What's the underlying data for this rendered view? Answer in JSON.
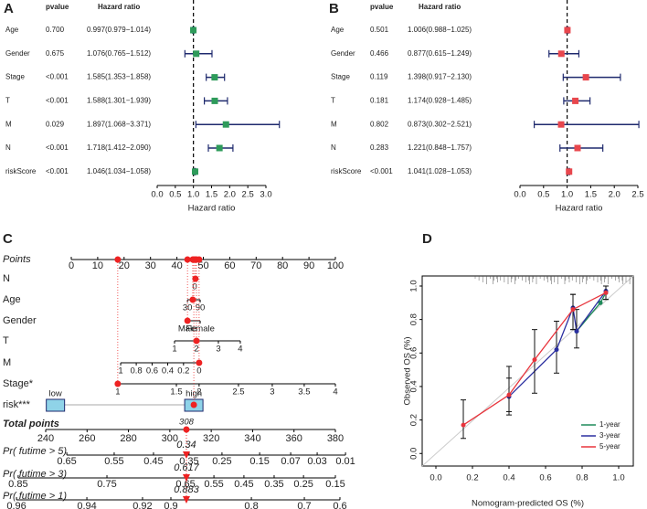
{
  "chart_data": [
    {
      "type": "forest",
      "panel": "A",
      "pvalue_header": "pvalue",
      "hr_header": "Hazard ratio",
      "xlabel": "Hazard ratio",
      "categories": [
        "Age",
        "Gender",
        "Stage",
        "T",
        "M",
        "N",
        "riskScore"
      ],
      "pvalues": [
        "0.700",
        "0.675",
        "<0.001",
        "<0.001",
        "0.029",
        "<0.001",
        "<0.001"
      ],
      "hr_labels": [
        "0.997(0.979−1.014)",
        "1.076(0.765−1.512)",
        "1.585(1.353−1.858)",
        "1.588(1.301−1.939)",
        "1.897(1.068−3.371)",
        "1.718(1.412−2.090)",
        "1.046(1.034−1.058)"
      ],
      "values": [
        0.997,
        1.076,
        1.585,
        1.588,
        1.897,
        1.718,
        1.046
      ],
      "lower": [
        0.979,
        0.765,
        1.353,
        1.301,
        1.068,
        1.412,
        1.034
      ],
      "upper": [
        1.014,
        1.512,
        1.858,
        1.939,
        3.371,
        2.09,
        1.058
      ],
      "color": "#2e9b5a",
      "ci_color": "#1f2a6e",
      "reference_line": 1,
      "xlim": [
        0,
        3
      ],
      "xticks": [
        {
          "value": 0,
          "label": "0.0"
        },
        0.5,
        {
          "value": 1,
          "label": "1.0"
        },
        1.5,
        {
          "value": 2,
          "label": "2.0"
        },
        2.5,
        {
          "value": 3,
          "label": "3.0"
        }
      ]
    },
    {
      "type": "forest",
      "panel": "B",
      "pvalue_header": "pvalue",
      "hr_header": "Hazard ratio",
      "xlabel": "Hazard ratio",
      "categories": [
        "Age",
        "Gender",
        "Stage",
        "T",
        "M",
        "N",
        "riskScore"
      ],
      "pvalues": [
        "0.501",
        "0.466",
        "0.119",
        "0.181",
        "0.802",
        "0.283",
        "<0.001"
      ],
      "hr_labels": [
        "1.006(0.988−1.025)",
        "0.877(0.615−1.249)",
        "1.398(0.917−2.130)",
        "1.174(0.928−1.485)",
        "0.873(0.302−2.521)",
        "1.221(0.848−1.757)",
        "1.041(1.028−1.053)"
      ],
      "values": [
        1.006,
        0.877,
        1.398,
        1.174,
        0.873,
        1.221,
        1.041
      ],
      "lower": [
        0.988,
        0.615,
        0.917,
        0.928,
        0.302,
        0.848,
        1.028
      ],
      "upper": [
        1.025,
        1.249,
        2.13,
        1.485,
        2.521,
        1.757,
        1.053
      ],
      "color": "#e8474d",
      "ci_color": "#1f2a6e",
      "reference_line": 1,
      "xlim": [
        0,
        2.5
      ],
      "xticks": [
        {
          "value": 0,
          "label": "0.0"
        },
        0.5,
        {
          "value": 1,
          "label": "1.0"
        },
        1.5,
        {
          "value": 2,
          "label": "2.0"
        },
        2.5
      ]
    },
    {
      "type": "nomogram",
      "panel": "C",
      "points_label": "Points",
      "points_xlim": [
        0,
        100
      ],
      "points_ticks": [
        0,
        10,
        20,
        30,
        40,
        50,
        60,
        70,
        80,
        90,
        100
      ],
      "variables": [
        {
          "name": "N",
          "ticks": [
            {
              "value": 46.7,
              "label": "0"
            }
          ],
          "selected": 47
        },
        {
          "name": "Age",
          "ticks": [
            {
              "value": 44,
              "label": "30"
            },
            {
              "value": 48.8,
              "label": "90"
            }
          ],
          "selected": 46
        },
        {
          "name": "Gender",
          "ticks": [
            {
              "value": 44,
              "label": "Male"
            },
            {
              "value": 48.8,
              "label": "Female"
            }
          ],
          "selected": 44
        },
        {
          "name": "T",
          "ticks": [
            {
              "value": 39.1,
              "label": "1"
            },
            {
              "value": 47.4,
              "label": "2"
            },
            {
              "value": 55.7,
              "label": "3"
            },
            {
              "value": 64,
              "label": "4"
            }
          ],
          "selected": 47.4
        },
        {
          "name": "M",
          "ticks": [
            {
              "value": 18.7,
              "label": "1"
            },
            {
              "value": 24.6,
              "label": "0.8"
            },
            {
              "value": 30.6,
              "label": "0.6"
            },
            {
              "value": 36.5,
              "label": "0.4"
            },
            {
              "value": 42.5,
              "label": "0.2"
            },
            {
              "value": 48.4,
              "label": "0"
            }
          ],
          "selected": 48.4
        },
        {
          "name": "Stage*",
          "ticks": [
            {
              "value": 17.6,
              "label": "1"
            },
            {
              "value": 39.8,
              "label": "1.5"
            },
            {
              "value": 48.4,
              "label": "2"
            },
            {
              "value": 63.3,
              "label": "2.5"
            },
            {
              "value": 76.1,
              "label": "3"
            },
            {
              "value": 88.2,
              "label": "3.5"
            },
            {
              "value": 100,
              "label": "4"
            }
          ],
          "selected": 17.6
        },
        {
          "name": "risk***",
          "style": "box",
          "ticks": [
            {
              "value": -6,
              "label": "low"
            },
            {
              "value": 46.4,
              "label": "high"
            }
          ],
          "selected": 46.4
        }
      ],
      "total_label": "Total points",
      "total_xlim": [
        240,
        380
      ],
      "total_ticks": [
        240,
        260,
        280,
        300,
        320,
        340,
        360,
        380
      ],
      "total_selected": 308,
      "predictions": [
        {
          "name": "Pr( futime > 5)",
          "selected": 0.34,
          "ticks": [
            {
              "value": 250.2,
              "label": "0.65"
            },
            {
              "value": 273.1,
              "label": "0.55"
            },
            {
              "value": 292.1,
              "label": "0.45"
            },
            {
              "value": 309.3,
              "label": "0.35"
            },
            {
              "value": 325.2,
              "label": "0.25"
            },
            {
              "value": 343.4,
              "label": "0.15"
            },
            {
              "value": 358.4,
              "label": "0.07"
            },
            {
              "value": 371.2,
              "label": "0.03"
            },
            {
              "value": 384.9,
              "label": "0.01"
            }
          ]
        },
        {
          "name": "Pr( futime > 3)",
          "selected": 0.617,
          "ticks": [
            {
              "value": 226.7,
              "label": "0.85"
            },
            {
              "value": 269.6,
              "label": "0.75"
            },
            {
              "value": 307.6,
              "label": "0.65"
            },
            {
              "value": 321.3,
              "label": "0.55"
            },
            {
              "value": 335.8,
              "label": "0.45"
            },
            {
              "value": 350.4,
              "label": "0.35"
            },
            {
              "value": 364.6,
              "label": "0.25"
            },
            {
              "value": 380,
              "label": "0.15"
            }
          ]
        },
        {
          "name": "Pr( futime > 1)",
          "selected": 0.883,
          "ticks": [
            {
              "value": 225.9,
              "label": "0.96"
            },
            {
              "value": 259.9,
              "label": "0.94"
            },
            {
              "value": 286.8,
              "label": "0.92"
            },
            {
              "value": 300.5,
              "label": "0.9"
            },
            {
              "value": 339.4,
              "label": "0.8"
            },
            {
              "value": 365,
              "label": "0.7"
            },
            {
              "value": 382.2,
              "label": "0.6"
            }
          ]
        }
      ]
    },
    {
      "type": "calibration",
      "panel": "D",
      "xlabel": "Nomogram-predicted OS (%)",
      "ylabel": "Observed OS (%)",
      "xlim": [
        -0.075,
        1.08
      ],
      "ylim": [
        -0.075,
        1.06
      ],
      "xticks": [
        {
          "value": 0,
          "label": "0.0"
        },
        0.2,
        0.4,
        0.6,
        0.8,
        {
          "value": 1,
          "label": "1.0"
        }
      ],
      "yticks": [
        {
          "value": 0,
          "label": "0.0"
        },
        0.2,
        0.4,
        0.6,
        0.8,
        {
          "value": 1,
          "label": "1.0"
        }
      ],
      "legend": "bottom-right",
      "series": [
        {
          "name": "1-year",
          "color": "#1f8a5a",
          "x": [
            0.77,
            0.9,
            0.93
          ],
          "y": [
            0.73,
            0.9,
            0.96
          ]
        },
        {
          "name": "3-year",
          "color": "#2b2fa0",
          "x": [
            0.4,
            0.66,
            0.75,
            0.77,
            0.93
          ],
          "y": [
            0.34,
            0.62,
            0.87,
            0.73,
            0.97
          ],
          "lower": [
            0.25,
            0.48,
            0.74,
            0.63,
            0.92
          ],
          "upper": [
            0.52,
            0.79,
            0.95,
            0.86,
            1.0
          ]
        },
        {
          "name": "5-year",
          "color": "#e8343c",
          "x": [
            0.15,
            0.4,
            0.54,
            0.75,
            0.93
          ],
          "y": [
            0.17,
            0.35,
            0.56,
            0.86,
            0.96
          ],
          "lower": [
            0.09,
            0.23,
            0.36,
            0.74,
            0.92
          ],
          "upper": [
            0.32,
            0.45,
            0.74,
            0.95,
            1.0
          ]
        }
      ]
    }
  ]
}
